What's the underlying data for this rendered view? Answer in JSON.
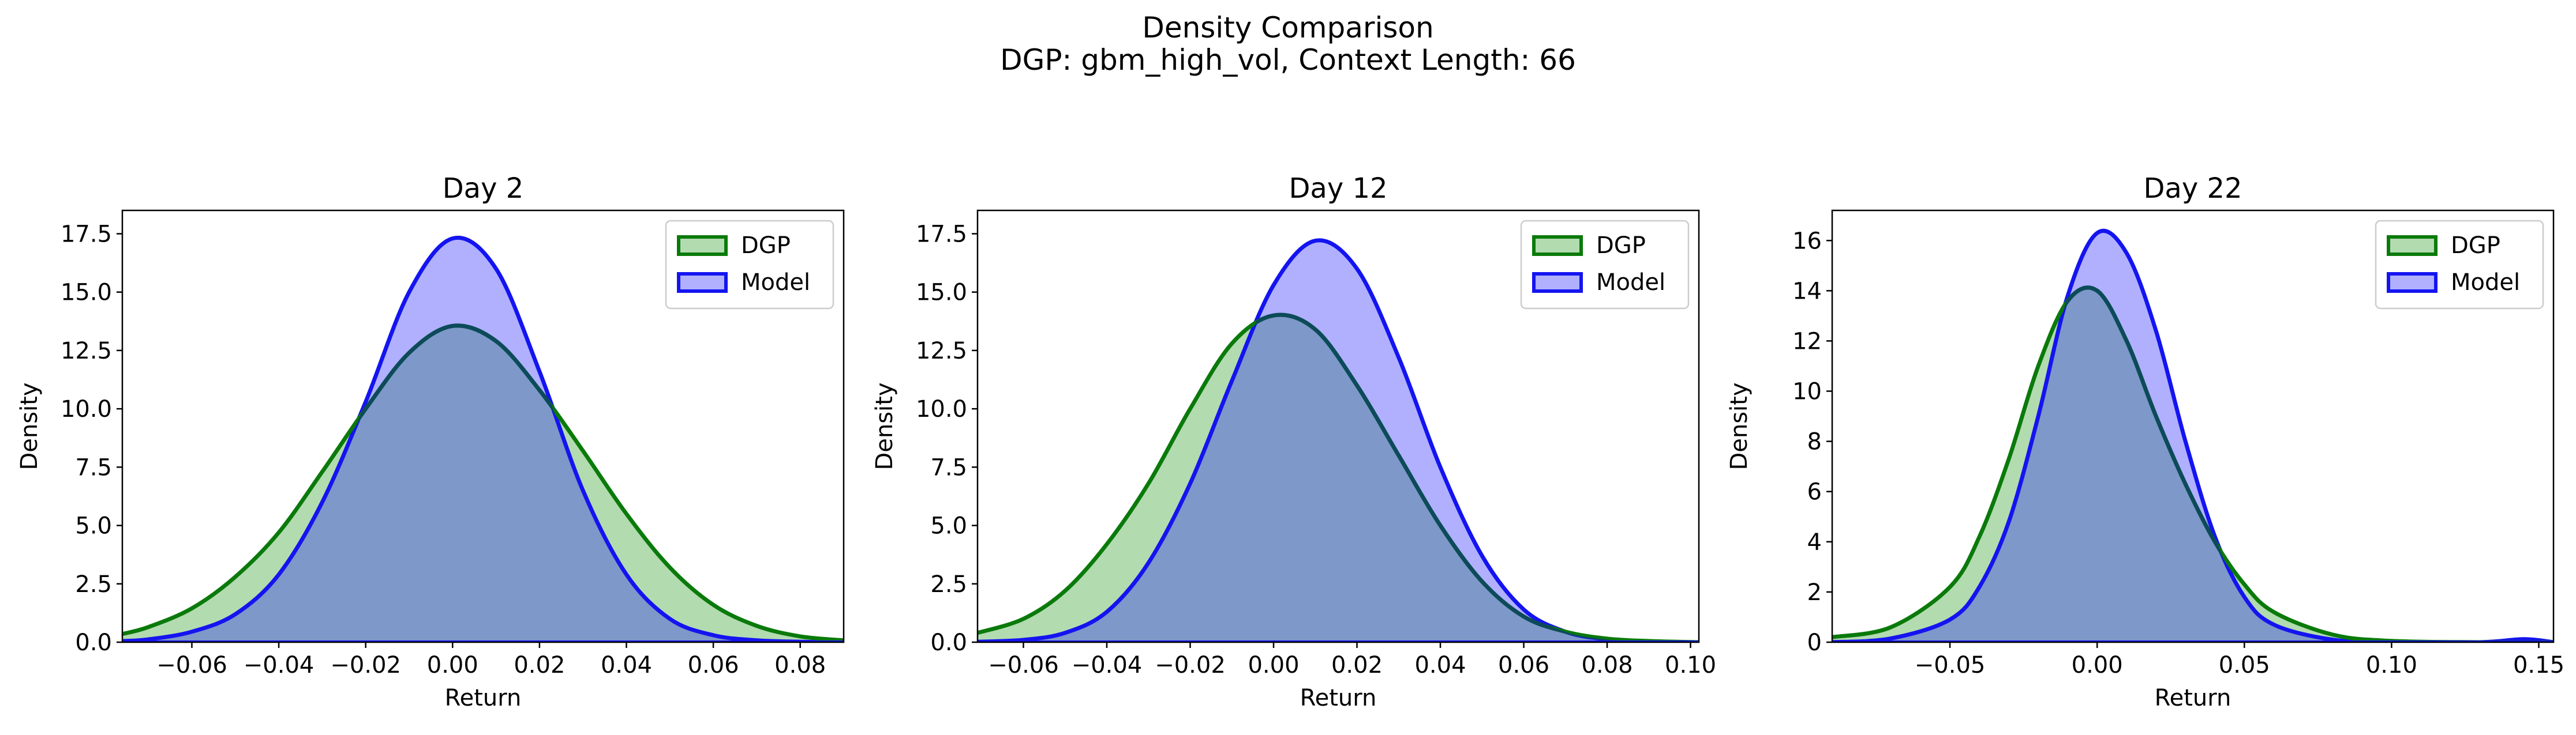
{
  "figure": {
    "title_line1": "Density Comparison",
    "title_line2": "DGP: gbm_high_vol, Context Length: 66"
  },
  "colors": {
    "dgp_line": "#0a7a0a",
    "dgp_fill": "#b2dbb0",
    "model_line": "#1414f0",
    "model_fill": "#b0b0ff",
    "overlap_fill": "#7d98c9",
    "overlap_line": "#0d4a5a"
  },
  "chart_data": [
    {
      "type": "area",
      "title": "Day 2",
      "xlabel": "Return",
      "ylabel": "Density",
      "xlim": [
        -0.076,
        0.09
      ],
      "ylim": [
        0,
        18.5
      ],
      "xticks": [
        -0.06,
        -0.04,
        -0.02,
        0.0,
        0.02,
        0.04,
        0.06,
        0.08
      ],
      "xtick_labels": [
        "−0.06",
        "−0.04",
        "−0.02",
        "0.00",
        "0.02",
        "0.04",
        "0.06",
        "0.08"
      ],
      "yticks": [
        0,
        2.5,
        5,
        7.5,
        10,
        12.5,
        15,
        17.5
      ],
      "ytick_labels": [
        "0.0",
        "2.5",
        "5.0",
        "7.5",
        "10.0",
        "12.5",
        "15.0",
        "17.5"
      ],
      "legend": [
        "DGP",
        "Model"
      ],
      "legend_position": "top-right",
      "x": [
        -0.076,
        -0.07,
        -0.06,
        -0.05,
        -0.04,
        -0.03,
        -0.02,
        -0.01,
        0.0,
        0.01,
        0.02,
        0.03,
        0.04,
        0.05,
        0.06,
        0.07,
        0.08,
        0.09
      ],
      "series": [
        {
          "name": "DGP",
          "values": [
            0.35,
            0.65,
            1.45,
            2.8,
            4.7,
            7.3,
            10.0,
            12.4,
            13.55,
            12.9,
            10.8,
            8.2,
            5.5,
            3.2,
            1.6,
            0.7,
            0.25,
            0.08
          ]
        },
        {
          "name": "Model",
          "values": [
            0.05,
            0.12,
            0.45,
            1.2,
            2.9,
            6.0,
            10.3,
            15.0,
            17.3,
            16.0,
            11.6,
            6.5,
            2.9,
            1.0,
            0.3,
            0.08,
            0.02,
            0.0
          ]
        }
      ]
    },
    {
      "type": "area",
      "title": "Day 12",
      "xlabel": "Return",
      "ylabel": "Density",
      "xlim": [
        -0.071,
        0.102
      ],
      "ylim": [
        0,
        18.5
      ],
      "xticks": [
        -0.06,
        -0.04,
        -0.02,
        0.0,
        0.02,
        0.04,
        0.06,
        0.08,
        0.1
      ],
      "xtick_labels": [
        "−0.06",
        "−0.04",
        "−0.02",
        "0.00",
        "0.02",
        "0.04",
        "0.06",
        "0.08",
        "0.10"
      ],
      "yticks": [
        0,
        2.5,
        5,
        7.5,
        10,
        12.5,
        15,
        17.5
      ],
      "ytick_labels": [
        "0.0",
        "2.5",
        "5.0",
        "7.5",
        "10.0",
        "12.5",
        "15.0",
        "17.5"
      ],
      "legend": [
        "DGP",
        "Model"
      ],
      "legend_position": "top-right",
      "x": [
        -0.071,
        -0.06,
        -0.05,
        -0.04,
        -0.03,
        -0.02,
        -0.01,
        0.0,
        0.01,
        0.02,
        0.03,
        0.04,
        0.05,
        0.06,
        0.07,
        0.08,
        0.09,
        0.102
      ],
      "series": [
        {
          "name": "DGP",
          "values": [
            0.4,
            1.0,
            2.2,
            4.2,
            6.8,
            10.0,
            12.8,
            14.0,
            13.4,
            11.0,
            8.0,
            5.0,
            2.6,
            1.1,
            0.45,
            0.15,
            0.05,
            0.0
          ]
        },
        {
          "name": "Model",
          "values": [
            0.02,
            0.1,
            0.4,
            1.3,
            3.4,
            6.8,
            11.2,
            15.3,
            17.2,
            16.0,
            12.2,
            7.5,
            3.7,
            1.4,
            0.45,
            0.12,
            0.03,
            0.0
          ]
        }
      ]
    },
    {
      "type": "area",
      "title": "Day 22",
      "xlabel": "Return",
      "ylabel": "Density",
      "xlim": [
        -0.09,
        0.155
      ],
      "ylim": [
        0,
        17.2
      ],
      "xticks": [
        -0.05,
        0.0,
        0.05,
        0.1,
        0.15
      ],
      "xtick_labels": [
        "−0.05",
        "0.00",
        "0.05",
        "0.10",
        "0.15"
      ],
      "yticks": [
        0,
        2,
        4,
        6,
        8,
        10,
        12,
        14,
        16
      ],
      "ytick_labels": [
        "0",
        "2",
        "4",
        "6",
        "8",
        "10",
        "12",
        "14",
        "16"
      ],
      "legend": [
        "DGP",
        "Model"
      ],
      "legend_position": "top-right",
      "x": [
        -0.09,
        -0.07,
        -0.05,
        -0.04,
        -0.03,
        -0.02,
        -0.01,
        0.0,
        0.01,
        0.02,
        0.03,
        0.04,
        0.05,
        0.06,
        0.08,
        0.1,
        0.13,
        0.145,
        0.155
      ],
      "series": [
        {
          "name": "DGP",
          "values": [
            0.2,
            0.6,
            2.2,
            4.2,
            7.3,
            11.0,
            13.6,
            14.0,
            12.0,
            9.0,
            6.3,
            4.0,
            2.3,
            1.2,
            0.3,
            0.05,
            0.0,
            0.0,
            0.0
          ]
        },
        {
          "name": "Model",
          "values": [
            0.0,
            0.15,
            0.9,
            2.2,
            4.8,
            9.0,
            13.8,
            16.3,
            15.5,
            12.4,
            8.0,
            4.2,
            1.8,
            0.7,
            0.1,
            0.02,
            0.0,
            0.12,
            0.0
          ]
        }
      ]
    }
  ]
}
